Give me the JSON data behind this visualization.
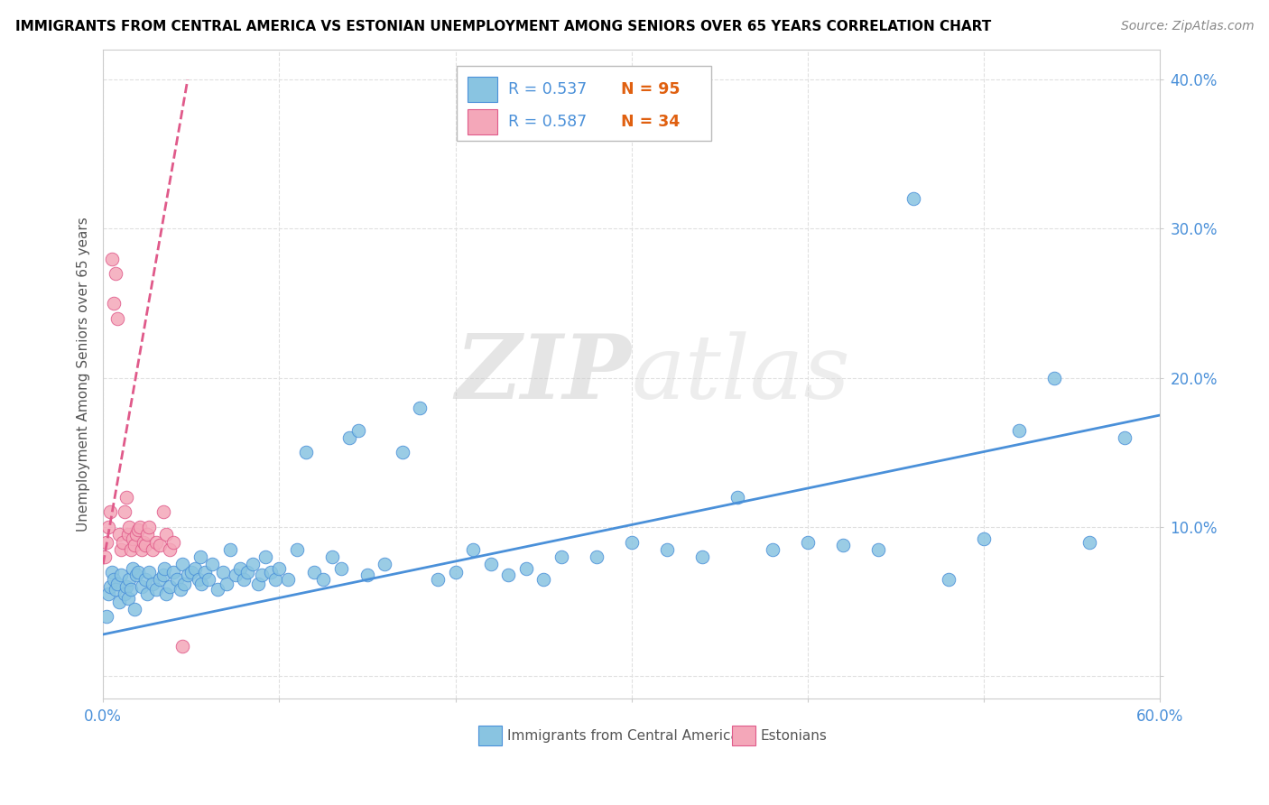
{
  "title": "IMMIGRANTS FROM CENTRAL AMERICA VS ESTONIAN UNEMPLOYMENT AMONG SENIORS OVER 65 YEARS CORRELATION CHART",
  "source": "Source: ZipAtlas.com",
  "ylabel": "Unemployment Among Seniors over 65 years",
  "xlim": [
    0.0,
    0.6
  ],
  "ylim": [
    -0.015,
    0.42
  ],
  "blue_color": "#89c4e1",
  "pink_color": "#f4a7b9",
  "blue_line_color": "#4a90d9",
  "pink_line_color": "#e05a8a",
  "legend_blue_R": "R = 0.537",
  "legend_blue_N": "N = 95",
  "legend_pink_R": "R = 0.587",
  "legend_pink_N": "N = 34",
  "watermark_zip": "ZIP",
  "watermark_atlas": "atlas",
  "blue_scatter_x": [
    0.002,
    0.003,
    0.004,
    0.005,
    0.006,
    0.007,
    0.008,
    0.009,
    0.01,
    0.012,
    0.013,
    0.014,
    0.015,
    0.016,
    0.017,
    0.018,
    0.019,
    0.02,
    0.022,
    0.024,
    0.025,
    0.026,
    0.028,
    0.03,
    0.032,
    0.034,
    0.035,
    0.036,
    0.038,
    0.04,
    0.042,
    0.044,
    0.045,
    0.046,
    0.048,
    0.05,
    0.052,
    0.054,
    0.055,
    0.056,
    0.058,
    0.06,
    0.062,
    0.065,
    0.068,
    0.07,
    0.072,
    0.075,
    0.078,
    0.08,
    0.082,
    0.085,
    0.088,
    0.09,
    0.092,
    0.095,
    0.098,
    0.1,
    0.105,
    0.11,
    0.115,
    0.12,
    0.125,
    0.13,
    0.135,
    0.14,
    0.145,
    0.15,
    0.16,
    0.17,
    0.18,
    0.19,
    0.2,
    0.21,
    0.22,
    0.23,
    0.24,
    0.25,
    0.26,
    0.28,
    0.3,
    0.32,
    0.34,
    0.36,
    0.38,
    0.4,
    0.42,
    0.44,
    0.46,
    0.48,
    0.5,
    0.52,
    0.54,
    0.56,
    0.58
  ],
  "blue_scatter_y": [
    0.04,
    0.055,
    0.06,
    0.07,
    0.065,
    0.058,
    0.062,
    0.05,
    0.068,
    0.055,
    0.06,
    0.052,
    0.065,
    0.058,
    0.072,
    0.045,
    0.068,
    0.07,
    0.06,
    0.065,
    0.055,
    0.07,
    0.062,
    0.058,
    0.065,
    0.068,
    0.072,
    0.055,
    0.06,
    0.07,
    0.065,
    0.058,
    0.075,
    0.062,
    0.068,
    0.07,
    0.072,
    0.065,
    0.08,
    0.062,
    0.07,
    0.065,
    0.075,
    0.058,
    0.07,
    0.062,
    0.085,
    0.068,
    0.072,
    0.065,
    0.07,
    0.075,
    0.062,
    0.068,
    0.08,
    0.07,
    0.065,
    0.072,
    0.065,
    0.085,
    0.15,
    0.07,
    0.065,
    0.08,
    0.072,
    0.16,
    0.165,
    0.068,
    0.075,
    0.15,
    0.18,
    0.065,
    0.07,
    0.085,
    0.075,
    0.068,
    0.072,
    0.065,
    0.08,
    0.08,
    0.09,
    0.085,
    0.08,
    0.12,
    0.085,
    0.09,
    0.088,
    0.085,
    0.32,
    0.065,
    0.092,
    0.165,
    0.2,
    0.09,
    0.16
  ],
  "pink_scatter_x": [
    0.001,
    0.002,
    0.003,
    0.004,
    0.005,
    0.006,
    0.007,
    0.008,
    0.009,
    0.01,
    0.011,
    0.012,
    0.013,
    0.014,
    0.015,
    0.016,
    0.017,
    0.018,
    0.019,
    0.02,
    0.021,
    0.022,
    0.023,
    0.024,
    0.025,
    0.026,
    0.028,
    0.03,
    0.032,
    0.034,
    0.036,
    0.038,
    0.04,
    0.045
  ],
  "pink_scatter_y": [
    0.08,
    0.09,
    0.1,
    0.11,
    0.28,
    0.25,
    0.27,
    0.24,
    0.095,
    0.085,
    0.09,
    0.11,
    0.12,
    0.095,
    0.1,
    0.085,
    0.092,
    0.088,
    0.095,
    0.098,
    0.1,
    0.085,
    0.09,
    0.088,
    0.095,
    0.1,
    0.085,
    0.09,
    0.088,
    0.11,
    0.095,
    0.085,
    0.09,
    0.02
  ],
  "blue_trend_x": [
    0.0,
    0.6
  ],
  "blue_trend_y": [
    0.028,
    0.175
  ],
  "pink_trend_x": [
    0.0,
    0.048
  ],
  "pink_trend_y": [
    0.075,
    0.4
  ]
}
